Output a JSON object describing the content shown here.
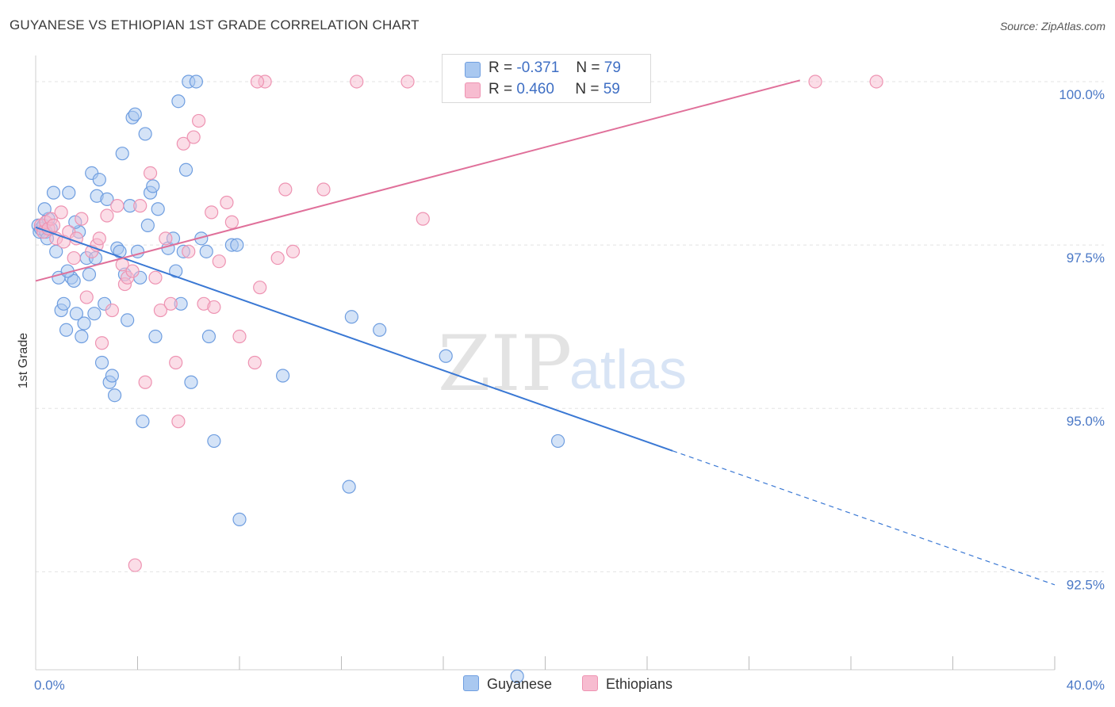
{
  "title": "GUYANESE VS ETHIOPIAN 1ST GRADE CORRELATION CHART",
  "source": "Source: ZipAtlas.com",
  "watermark": {
    "zip": "ZIP",
    "atlas": "atlas"
  },
  "colors": {
    "blue_fill": "#a9c8f0",
    "blue_stroke": "#6f9ee0",
    "blue_line": "#3a78d4",
    "pink_fill": "#f7bcd0",
    "pink_stroke": "#ee93b2",
    "pink_line": "#e0709a",
    "tick_text": "#4a78c6",
    "grid": "#e3e3e3"
  },
  "legend": {
    "rows": [
      {
        "r_label": "R =",
        "r_value": "-0.371",
        "n_label": "N =",
        "n_value": "79"
      },
      {
        "r_label": "R =",
        "r_value": "0.460",
        "n_label": "N =",
        "n_value": "59"
      }
    ]
  },
  "bottom_legend": [
    "Guyanese",
    "Ethiopians"
  ],
  "chart_data": {
    "type": "scatter",
    "title": "GUYANESE VS ETHIOPIAN 1ST GRADE CORRELATION CHART",
    "ylabel": "1st Grade",
    "xlabel": "",
    "xlim": [
      0,
      40
    ],
    "ylim": [
      91.0,
      100.4
    ],
    "x_tick_labels": [
      {
        "x": 0,
        "label": "0.0%"
      },
      {
        "x": 40,
        "label": "40.0%"
      }
    ],
    "y_tick_labels": [
      {
        "y": 100,
        "label": "100.0%"
      },
      {
        "y": 97.5,
        "label": "97.5%"
      },
      {
        "y": 95,
        "label": "95.0%"
      },
      {
        "y": 92.5,
        "label": "92.5%"
      }
    ],
    "grid": true,
    "legend_position": "top-center",
    "series": [
      {
        "name": "Guyanese",
        "r": -0.371,
        "n": 79,
        "trend": {
          "x0": 0,
          "y0": 97.77,
          "x1": 25,
          "y1": 94.35,
          "dash_to_x": 40,
          "dash_to_y": 92.3
        },
        "points": [
          [
            0.1,
            97.8
          ],
          [
            0.15,
            97.7
          ],
          [
            0.2,
            97.75
          ],
          [
            0.3,
            97.8
          ],
          [
            0.4,
            97.7
          ],
          [
            0.5,
            97.9
          ],
          [
            0.6,
            97.75
          ],
          [
            0.7,
            98.3
          ],
          [
            0.8,
            97.4
          ],
          [
            0.9,
            97.0
          ],
          [
            1.0,
            96.5
          ],
          [
            1.1,
            96.6
          ],
          [
            1.2,
            96.2
          ],
          [
            1.3,
            98.3
          ],
          [
            1.4,
            97.0
          ],
          [
            1.5,
            96.95
          ],
          [
            1.6,
            96.45
          ],
          [
            1.7,
            97.7
          ],
          [
            1.8,
            96.1
          ],
          [
            1.9,
            96.3
          ],
          [
            2.0,
            97.3
          ],
          [
            2.1,
            97.05
          ],
          [
            2.2,
            98.6
          ],
          [
            2.3,
            96.45
          ],
          [
            2.4,
            98.25
          ],
          [
            2.5,
            98.5
          ],
          [
            2.6,
            95.7
          ],
          [
            2.7,
            96.6
          ],
          [
            2.8,
            98.2
          ],
          [
            2.9,
            95.4
          ],
          [
            3.0,
            95.5
          ],
          [
            3.1,
            95.2
          ],
          [
            3.2,
            97.45
          ],
          [
            3.3,
            97.4
          ],
          [
            3.4,
            98.9
          ],
          [
            3.5,
            97.05
          ],
          [
            3.6,
            96.35
          ],
          [
            3.7,
            98.1
          ],
          [
            3.8,
            99.45
          ],
          [
            3.9,
            99.5
          ],
          [
            4.0,
            97.4
          ],
          [
            4.1,
            97.0
          ],
          [
            4.2,
            94.8
          ],
          [
            4.3,
            99.2
          ],
          [
            4.4,
            97.8
          ],
          [
            4.5,
            98.3
          ],
          [
            4.6,
            98.4
          ],
          [
            4.7,
            96.1
          ],
          [
            4.8,
            98.05
          ],
          [
            5.2,
            97.45
          ],
          [
            5.4,
            97.6
          ],
          [
            5.5,
            97.1
          ],
          [
            5.6,
            99.7
          ],
          [
            5.7,
            96.6
          ],
          [
            5.8,
            97.4
          ],
          [
            5.9,
            98.65
          ],
          [
            6.0,
            100.0
          ],
          [
            6.1,
            95.4
          ],
          [
            6.3,
            100.0
          ],
          [
            6.5,
            97.6
          ],
          [
            6.7,
            97.4
          ],
          [
            6.8,
            96.1
          ],
          [
            7.0,
            94.5
          ],
          [
            7.7,
            97.5
          ],
          [
            7.9,
            97.5
          ],
          [
            8.0,
            93.3
          ],
          [
            9.7,
            95.5
          ],
          [
            12.3,
            93.8
          ],
          [
            12.4,
            96.4
          ],
          [
            13.5,
            96.2
          ],
          [
            16.1,
            95.8
          ],
          [
            16.4,
            100.0
          ],
          [
            18.9,
            90.9
          ],
          [
            20.5,
            94.5
          ],
          [
            1.25,
            97.1
          ],
          [
            2.35,
            97.3
          ],
          [
            0.35,
            98.05
          ],
          [
            0.45,
            97.6
          ],
          [
            1.55,
            97.85
          ]
        ]
      },
      {
        "name": "Ethiopians",
        "r": 0.46,
        "n": 59,
        "trend": {
          "x0": 0,
          "y0": 96.95,
          "x1": 30,
          "y1": 100.02
        },
        "points": [
          [
            0.2,
            97.8
          ],
          [
            0.3,
            97.7
          ],
          [
            0.4,
            97.85
          ],
          [
            0.5,
            97.75
          ],
          [
            0.6,
            97.9
          ],
          [
            0.7,
            97.8
          ],
          [
            0.8,
            97.6
          ],
          [
            1.0,
            98.0
          ],
          [
            1.1,
            97.55
          ],
          [
            1.3,
            97.7
          ],
          [
            1.5,
            97.3
          ],
          [
            1.6,
            97.6
          ],
          [
            1.8,
            97.9
          ],
          [
            2.0,
            96.7
          ],
          [
            2.2,
            97.4
          ],
          [
            2.4,
            97.5
          ],
          [
            2.5,
            97.6
          ],
          [
            2.6,
            96.0
          ],
          [
            2.8,
            97.95
          ],
          [
            3.0,
            96.5
          ],
          [
            3.2,
            98.1
          ],
          [
            3.4,
            97.2
          ],
          [
            3.5,
            96.9
          ],
          [
            3.6,
            97.0
          ],
          [
            3.8,
            97.1
          ],
          [
            4.1,
            98.1
          ],
          [
            4.3,
            95.4
          ],
          [
            4.5,
            98.6
          ],
          [
            4.7,
            97.0
          ],
          [
            4.9,
            96.5
          ],
          [
            5.1,
            97.6
          ],
          [
            5.3,
            96.6
          ],
          [
            5.5,
            95.7
          ],
          [
            5.6,
            94.8
          ],
          [
            5.8,
            99.05
          ],
          [
            6.0,
            97.4
          ],
          [
            6.2,
            99.15
          ],
          [
            6.4,
            99.4
          ],
          [
            6.6,
            96.6
          ],
          [
            6.9,
            98.0
          ],
          [
            7.0,
            96.55
          ],
          [
            7.2,
            97.25
          ],
          [
            7.5,
            98.15
          ],
          [
            7.7,
            97.85
          ],
          [
            8.0,
            96.1
          ],
          [
            8.6,
            95.7
          ],
          [
            8.8,
            96.85
          ],
          [
            9.0,
            100.0
          ],
          [
            9.5,
            97.3
          ],
          [
            9.8,
            98.35
          ],
          [
            10.1,
            97.4
          ],
          [
            11.3,
            98.35
          ],
          [
            12.6,
            100.0
          ],
          [
            14.6,
            100.0
          ],
          [
            15.2,
            97.9
          ],
          [
            30.6,
            100.0
          ],
          [
            33.0,
            100.0
          ],
          [
            8.7,
            100.0
          ],
          [
            3.9,
            92.6
          ]
        ]
      }
    ]
  }
}
